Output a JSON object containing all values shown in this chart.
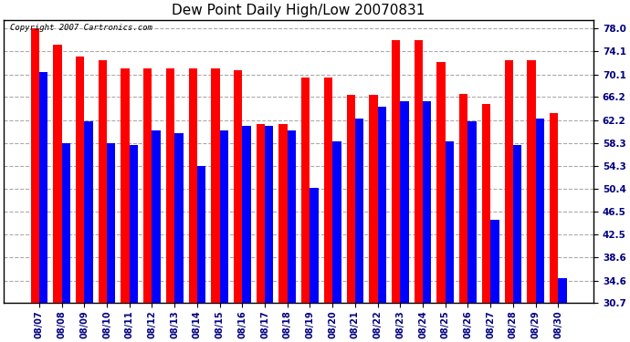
{
  "title": "Dew Point Daily High/Low 20070831",
  "copyright": "Copyright 2007 Cartronics.com",
  "dates": [
    "08/07",
    "08/08",
    "08/09",
    "08/10",
    "08/11",
    "08/12",
    "08/13",
    "08/14",
    "08/15",
    "08/16",
    "08/17",
    "08/18",
    "08/19",
    "08/20",
    "08/21",
    "08/22",
    "08/23",
    "08/24",
    "08/25",
    "08/26",
    "08/27",
    "08/28",
    "08/29",
    "08/30"
  ],
  "highs": [
    78.0,
    75.2,
    73.2,
    72.5,
    71.2,
    71.2,
    71.2,
    71.2,
    71.2,
    70.8,
    61.5,
    61.5,
    69.5,
    69.5,
    66.5,
    66.5,
    76.0,
    76.0,
    72.2,
    66.8,
    65.0,
    72.5,
    72.5,
    63.5
  ],
  "lows": [
    70.5,
    58.3,
    62.0,
    58.3,
    58.0,
    60.5,
    60.0,
    54.3,
    60.5,
    61.2,
    61.2,
    60.5,
    50.5,
    58.5,
    62.5,
    64.5,
    65.5,
    65.5,
    58.5,
    62.0,
    45.0,
    58.0,
    62.5,
    35.0
  ],
  "high_color": "#ff0000",
  "low_color": "#0000ff",
  "bg_color": "#ffffff",
  "plot_bg_color": "#ffffff",
  "grid_color": "#aaaaaa",
  "yticks": [
    30.7,
    34.6,
    38.6,
    42.5,
    46.5,
    50.4,
    54.3,
    58.3,
    62.2,
    66.2,
    70.1,
    74.1,
    78.0
  ],
  "ylim_min": 30.7,
  "ylim_max": 79.5,
  "bar_width": 0.38
}
